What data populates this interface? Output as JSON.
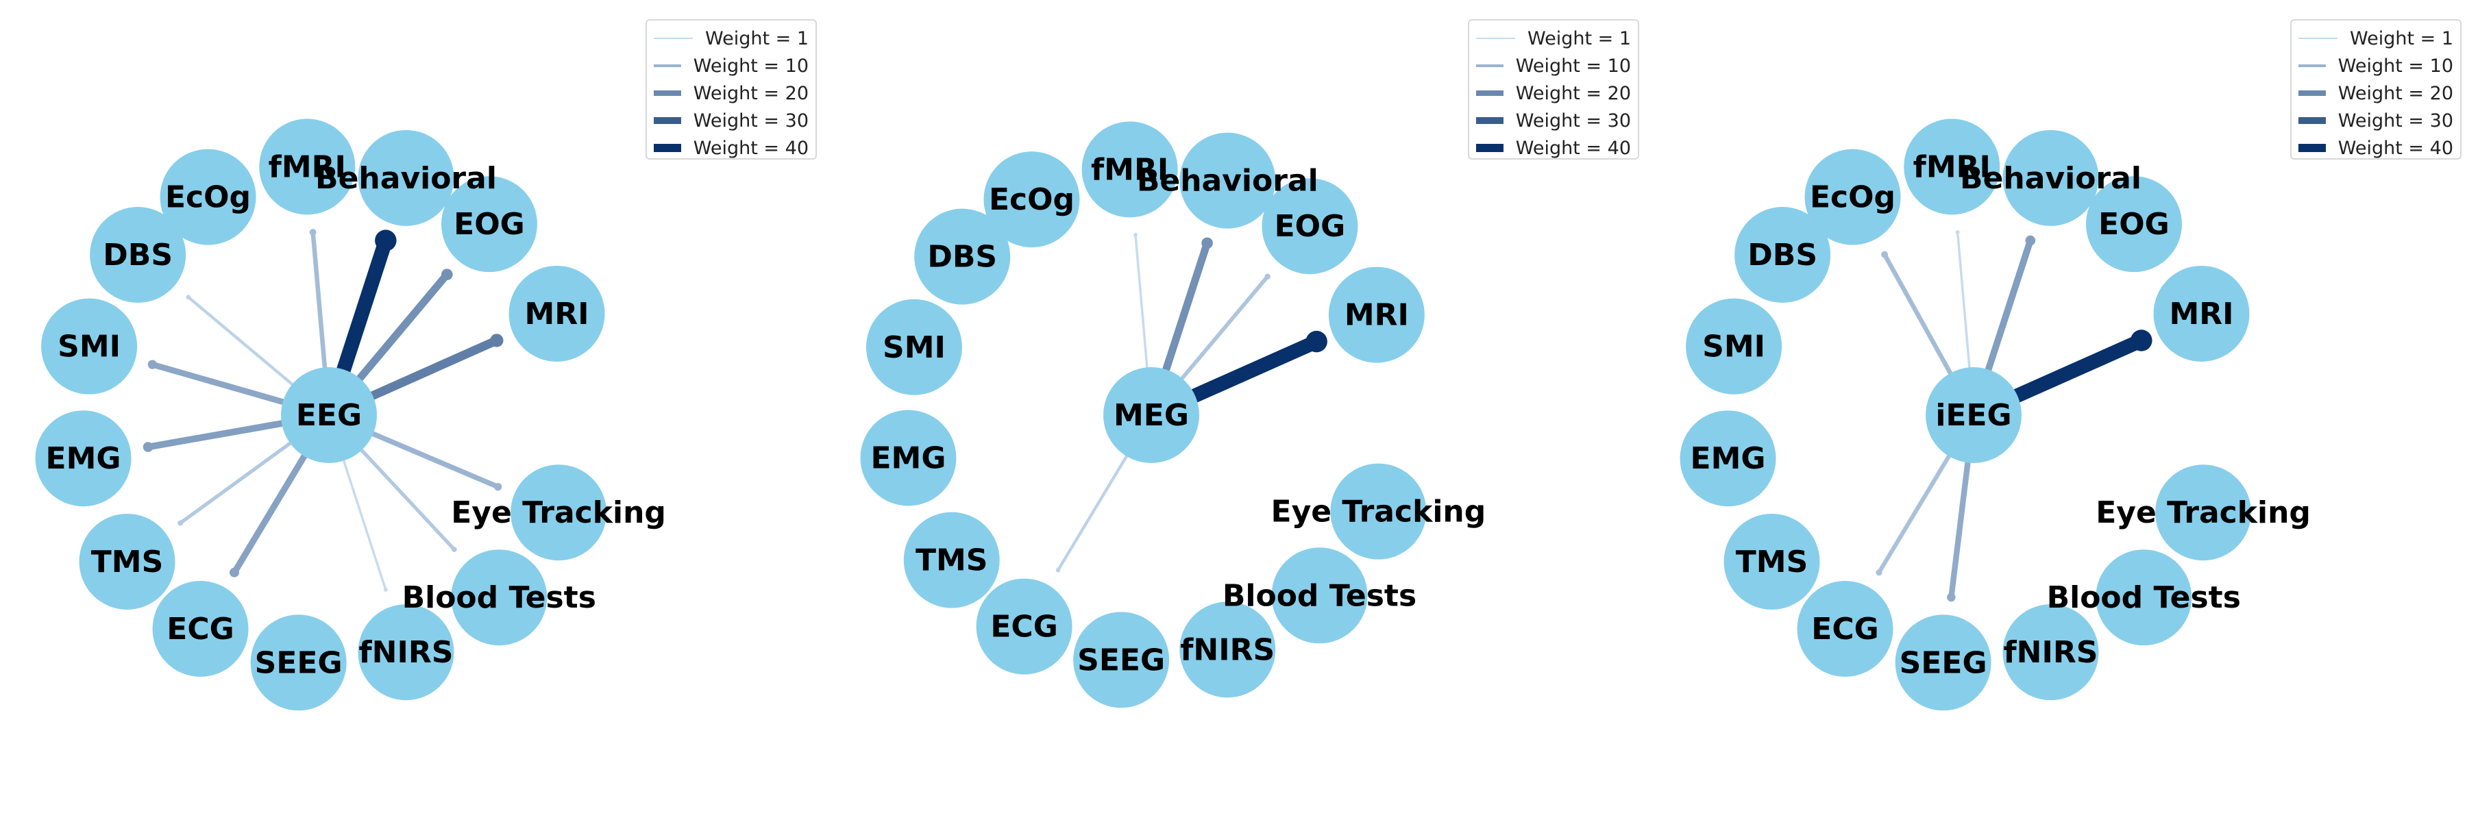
{
  "chart_data": [
    {
      "type": "network",
      "center": "EEG",
      "nodes": [
        "fMRI",
        "Behavioral",
        "EOG",
        "MRI",
        "Eye Tracking",
        "Blood Tests",
        "fNIRS",
        "SEEG",
        "ECG",
        "TMS",
        "EMG",
        "SMI",
        "DBS",
        "EcOg"
      ],
      "edges": [
        {
          "target": "fMRI",
          "weight": 8
        },
        {
          "target": "Behavioral",
          "weight": 40
        },
        {
          "target": "EOG",
          "weight": 18
        },
        {
          "target": "MRI",
          "weight": 22
        },
        {
          "target": "Eye Tracking",
          "weight": 10
        },
        {
          "target": "Blood Tests",
          "weight": 5
        },
        {
          "target": "fNIRS",
          "weight": 1
        },
        {
          "target": "ECG",
          "weight": 14
        },
        {
          "target": "TMS",
          "weight": 5
        },
        {
          "target": "EMG",
          "weight": 15
        },
        {
          "target": "SMI",
          "weight": 13
        },
        {
          "target": "DBS",
          "weight": 3
        }
      ]
    },
    {
      "type": "network",
      "center": "MEG",
      "nodes": [
        "fMRI",
        "Behavioral",
        "EOG",
        "MRI",
        "Eye Tracking",
        "Blood Tests",
        "fNIRS",
        "SEEG",
        "ECG",
        "TMS",
        "EMG",
        "SMI",
        "DBS",
        "EcOg"
      ],
      "edges": [
        {
          "target": "fMRI",
          "weight": 1
        },
        {
          "target": "Behavioral",
          "weight": 18
        },
        {
          "target": "EOG",
          "weight": 6
        },
        {
          "target": "MRI",
          "weight": 40
        },
        {
          "target": "ECG",
          "weight": 3
        }
      ]
    },
    {
      "type": "network",
      "center": "iEEG",
      "nodes": [
        "fMRI",
        "Behavioral",
        "EOG",
        "MRI",
        "Eye Tracking",
        "Blood Tests",
        "fNIRS",
        "SEEG",
        "ECG",
        "TMS",
        "EMG",
        "SMI",
        "DBS",
        "EcOg"
      ],
      "edges": [
        {
          "target": "fMRI",
          "weight": 1
        },
        {
          "target": "Behavioral",
          "weight": 15
        },
        {
          "target": "MRI",
          "weight": 40
        },
        {
          "target": "SEEG",
          "weight": 12
        },
        {
          "target": "ECG",
          "weight": 7
        },
        {
          "target": "EcOg",
          "weight": 8
        }
      ]
    }
  ],
  "legend": {
    "placement": "top-right",
    "items": [
      "Weight = 1",
      "Weight = 10",
      "Weight = 20",
      "Weight = 30",
      "Weight = 40"
    ],
    "weights": [
      1,
      10,
      20,
      30,
      40
    ]
  },
  "colors": {
    "node_fill": "#87ceeb",
    "edge_light": "#c6dbef",
    "edge_dark": "#08306b"
  }
}
